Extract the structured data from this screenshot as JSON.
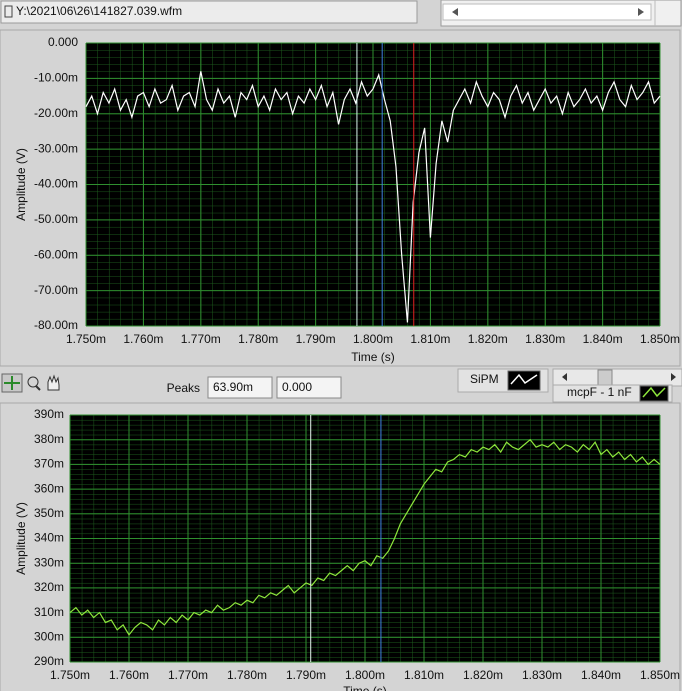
{
  "file_path": "Y:\\2021\\06\\26\\141827.039.wfm",
  "toolbar": {
    "peaks_label": "Peaks",
    "peaks_value": "63.90m",
    "peaks_value_2": "0.000"
  },
  "chart_data": [
    {
      "type": "line",
      "ylabel": "Amplitude (V)",
      "xlabel": "Time (s)",
      "grid": true,
      "xlim": [
        0.00175,
        0.00185
      ],
      "ylim": [
        -0.08,
        0
      ],
      "xticks": [
        {
          "value": 0.00175,
          "label": "1.750m"
        },
        {
          "value": 0.00176,
          "label": "1.760m"
        },
        {
          "value": 0.00177,
          "label": "1.770m"
        },
        {
          "value": 0.00178,
          "label": "1.780m"
        },
        {
          "value": 0.00179,
          "label": "1.790m"
        },
        {
          "value": 0.0018,
          "label": "1.800m"
        },
        {
          "value": 0.00181,
          "label": "1.810m"
        },
        {
          "value": 0.00182,
          "label": "1.820m"
        },
        {
          "value": 0.00183,
          "label": "1.830m"
        },
        {
          "value": 0.00184,
          "label": "1.840m"
        },
        {
          "value": 0.00185,
          "label": "1.850m"
        }
      ],
      "yticks": [
        {
          "value": 0,
          "label": "0.000"
        },
        {
          "value": -0.01,
          "label": "-10.00m"
        },
        {
          "value": -0.02,
          "label": "-20.00m"
        },
        {
          "value": -0.03,
          "label": "-30.00m"
        },
        {
          "value": -0.04,
          "label": "-40.00m"
        },
        {
          "value": -0.05,
          "label": "-50.00m"
        },
        {
          "value": -0.06,
          "label": "-60.00m"
        },
        {
          "value": -0.07,
          "label": "-70.00m"
        },
        {
          "value": -0.08,
          "label": "-80.00m"
        }
      ],
      "cursors": [
        {
          "x": 0.0017972,
          "color": "#d8f4ee"
        },
        {
          "x": 0.0018016,
          "color": "#3f7fe0"
        },
        {
          "x": 0.0018071,
          "color": "#e02020"
        }
      ],
      "x": [
        0.00175,
        0.001751,
        0.001752,
        0.001753,
        0.001754,
        0.001755,
        0.001756,
        0.001757,
        0.001758,
        0.001759,
        0.00176,
        0.001761,
        0.001762,
        0.001763,
        0.001764,
        0.001765,
        0.001766,
        0.001767,
        0.001768,
        0.001769,
        0.00177,
        0.001771,
        0.001772,
        0.001773,
        0.001774,
        0.001775,
        0.001776,
        0.001777,
        0.001778,
        0.001779,
        0.00178,
        0.001781,
        0.001782,
        0.001783,
        0.001784,
        0.001785,
        0.001786,
        0.001787,
        0.001788,
        0.001789,
        0.00179,
        0.001791,
        0.001792,
        0.001793,
        0.001794,
        0.001795,
        0.001796,
        0.001797,
        0.001798,
        0.001799,
        0.0018,
        0.001801,
        0.001802,
        0.001803,
        0.001804,
        0.001805,
        0.001806,
        0.001807,
        0.001808,
        0.001809,
        0.00181,
        0.001811,
        0.001812,
        0.001813,
        0.001814,
        0.001815,
        0.001816,
        0.001817,
        0.001818,
        0.001819,
        0.00182,
        0.001821,
        0.001822,
        0.001823,
        0.001824,
        0.001825,
        0.001826,
        0.001827,
        0.001828,
        0.001829,
        0.00183,
        0.001831,
        0.001832,
        0.001833,
        0.001834,
        0.001835,
        0.001836,
        0.001837,
        0.001838,
        0.001839,
        0.00184,
        0.001841,
        0.001842,
        0.001843,
        0.001844,
        0.001845,
        0.001846,
        0.001847,
        0.001848,
        0.001849,
        0.00185
      ],
      "series": [
        {
          "name": "SiPM",
          "color": "#ffffff",
          "values": [
            -0.018,
            -0.015,
            -0.02,
            -0.014,
            -0.017,
            -0.013,
            -0.019,
            -0.016,
            -0.021,
            -0.015,
            -0.014,
            -0.018,
            -0.013,
            -0.017,
            -0.016,
            -0.012,
            -0.019,
            -0.015,
            -0.014,
            -0.018,
            -0.008,
            -0.016,
            -0.019,
            -0.013,
            -0.017,
            -0.015,
            -0.021,
            -0.014,
            -0.016,
            -0.012,
            -0.018,
            -0.015,
            -0.019,
            -0.013,
            -0.016,
            -0.014,
            -0.02,
            -0.015,
            -0.017,
            -0.013,
            -0.016,
            -0.012,
            -0.018,
            -0.014,
            -0.023,
            -0.016,
            -0.013,
            -0.017,
            -0.011,
            -0.015,
            -0.013,
            -0.009,
            -0.016,
            -0.022,
            -0.035,
            -0.06,
            -0.079,
            -0.045,
            -0.031,
            -0.024,
            -0.055,
            -0.034,
            -0.022,
            -0.028,
            -0.019,
            -0.016,
            -0.013,
            -0.017,
            -0.011,
            -0.015,
            -0.018,
            -0.014,
            -0.016,
            -0.021,
            -0.015,
            -0.012,
            -0.017,
            -0.014,
            -0.019,
            -0.016,
            -0.013,
            -0.017,
            -0.015,
            -0.02,
            -0.014,
            -0.018,
            -0.016,
            -0.013,
            -0.017,
            -0.015,
            -0.019,
            -0.014,
            -0.011,
            -0.016,
            -0.018,
            -0.012,
            -0.016,
            -0.014,
            -0.011,
            -0.017,
            -0.015
          ]
        }
      ]
    },
    {
      "type": "line",
      "ylabel": "Amplitude (V)",
      "xlabel": "Time (s)",
      "grid": true,
      "xlim": [
        0.00175,
        0.00185
      ],
      "ylim": [
        0.29,
        0.39
      ],
      "xticks": [
        {
          "value": 0.00175,
          "label": "1.750m"
        },
        {
          "value": 0.00176,
          "label": "1.760m"
        },
        {
          "value": 0.00177,
          "label": "1.770m"
        },
        {
          "value": 0.00178,
          "label": "1.780m"
        },
        {
          "value": 0.00179,
          "label": "1.790m"
        },
        {
          "value": 0.0018,
          "label": "1.800m"
        },
        {
          "value": 0.00181,
          "label": "1.810m"
        },
        {
          "value": 0.00182,
          "label": "1.820m"
        },
        {
          "value": 0.00183,
          "label": "1.830m"
        },
        {
          "value": 0.00184,
          "label": "1.840m"
        },
        {
          "value": 0.00185,
          "label": "1.850m"
        }
      ],
      "yticks": [
        {
          "value": 0.29,
          "label": "290m"
        },
        {
          "value": 0.3,
          "label": "300m"
        },
        {
          "value": 0.31,
          "label": "310m"
        },
        {
          "value": 0.32,
          "label": "320m"
        },
        {
          "value": 0.33,
          "label": "330m"
        },
        {
          "value": 0.34,
          "label": "340m"
        },
        {
          "value": 0.35,
          "label": "350m"
        },
        {
          "value": 0.36,
          "label": "360m"
        },
        {
          "value": 0.37,
          "label": "370m"
        },
        {
          "value": 0.38,
          "label": "380m"
        },
        {
          "value": 0.39,
          "label": "390m"
        }
      ],
      "cursors": [
        {
          "x": 0.0017908,
          "color": "#e8f8f0"
        },
        {
          "x": 0.0018027,
          "color": "#3f7fe0"
        }
      ],
      "x": [
        0.00175,
        0.001751,
        0.001752,
        0.001753,
        0.001754,
        0.001755,
        0.001756,
        0.001757,
        0.001758,
        0.001759,
        0.00176,
        0.001761,
        0.001762,
        0.001763,
        0.001764,
        0.001765,
        0.001766,
        0.001767,
        0.001768,
        0.001769,
        0.00177,
        0.001771,
        0.001772,
        0.001773,
        0.001774,
        0.001775,
        0.001776,
        0.001777,
        0.001778,
        0.001779,
        0.00178,
        0.001781,
        0.001782,
        0.001783,
        0.001784,
        0.001785,
        0.001786,
        0.001787,
        0.001788,
        0.001789,
        0.00179,
        0.001791,
        0.001792,
        0.001793,
        0.001794,
        0.001795,
        0.001796,
        0.001797,
        0.001798,
        0.001799,
        0.0018,
        0.001801,
        0.001802,
        0.001803,
        0.001804,
        0.001805,
        0.001806,
        0.001807,
        0.001808,
        0.001809,
        0.00181,
        0.001811,
        0.001812,
        0.001813,
        0.001814,
        0.001815,
        0.001816,
        0.001817,
        0.001818,
        0.001819,
        0.00182,
        0.001821,
        0.001822,
        0.001823,
        0.001824,
        0.001825,
        0.001826,
        0.001827,
        0.001828,
        0.001829,
        0.00183,
        0.001831,
        0.001832,
        0.001833,
        0.001834,
        0.001835,
        0.001836,
        0.001837,
        0.001838,
        0.001839,
        0.00184,
        0.001841,
        0.001842,
        0.001843,
        0.001844,
        0.001845,
        0.001846,
        0.001847,
        0.001848,
        0.001849,
        0.00185
      ],
      "series": [
        {
          "name": "mcpF - 1 nF",
          "color": "#8ee63c",
          "values": [
            0.31,
            0.312,
            0.309,
            0.311,
            0.308,
            0.31,
            0.306,
            0.307,
            0.303,
            0.305,
            0.301,
            0.304,
            0.306,
            0.305,
            0.303,
            0.307,
            0.305,
            0.308,
            0.306,
            0.309,
            0.307,
            0.31,
            0.309,
            0.311,
            0.31,
            0.313,
            0.311,
            0.312,
            0.314,
            0.313,
            0.315,
            0.314,
            0.317,
            0.316,
            0.318,
            0.317,
            0.319,
            0.321,
            0.318,
            0.32,
            0.322,
            0.321,
            0.324,
            0.323,
            0.326,
            0.325,
            0.327,
            0.329,
            0.327,
            0.33,
            0.331,
            0.329,
            0.333,
            0.332,
            0.335,
            0.34,
            0.346,
            0.35,
            0.354,
            0.358,
            0.362,
            0.365,
            0.368,
            0.367,
            0.371,
            0.372,
            0.374,
            0.373,
            0.376,
            0.375,
            0.377,
            0.376,
            0.378,
            0.375,
            0.379,
            0.377,
            0.376,
            0.378,
            0.38,
            0.377,
            0.378,
            0.377,
            0.379,
            0.376,
            0.378,
            0.377,
            0.375,
            0.378,
            0.376,
            0.379,
            0.374,
            0.376,
            0.373,
            0.375,
            0.372,
            0.374,
            0.371,
            0.373,
            0.37,
            0.372,
            0.37
          ]
        }
      ]
    }
  ]
}
